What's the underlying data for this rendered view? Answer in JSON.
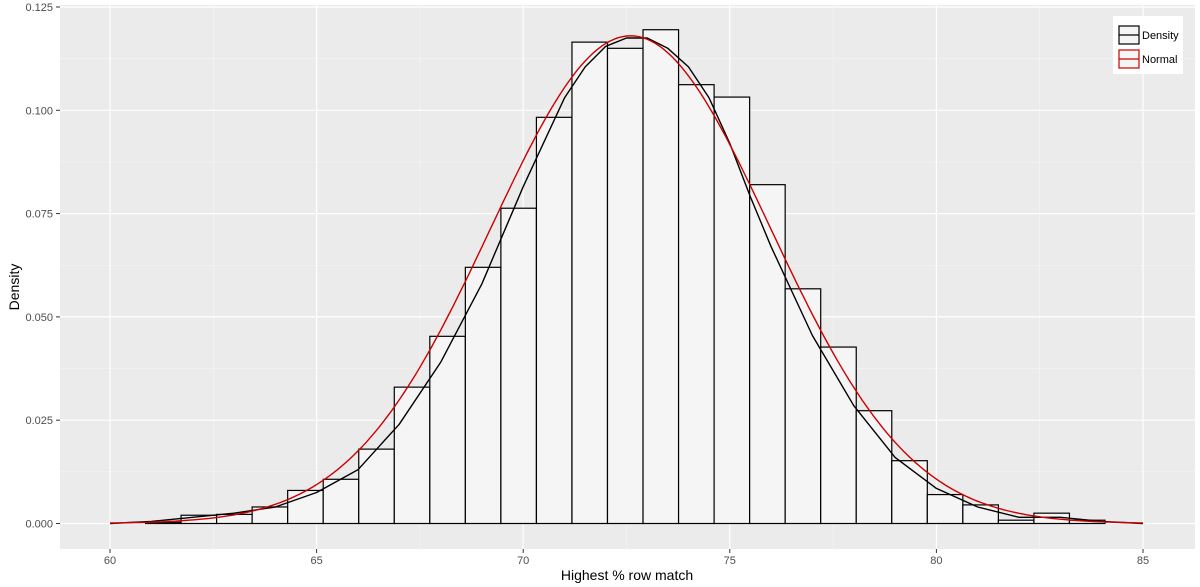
{
  "chart_data": {
    "type": "bar",
    "subtype": "histogram-with-density-curves",
    "title": "",
    "xlabel": "Highest % row match",
    "ylabel": "Density",
    "xlim": [
      60,
      85
    ],
    "ylim": [
      0,
      0.125
    ],
    "xticks": [
      60,
      65,
      70,
      75,
      80,
      85
    ],
    "xtick_labels": [
      "60",
      "65",
      "70",
      "75",
      "80",
      "85"
    ],
    "yticks": [
      0,
      0.025,
      0.05,
      0.075,
      0.1,
      0.125
    ],
    "ytick_labels": [
      "0.000",
      "0.025",
      "0.050",
      "0.075",
      "0.100",
      "0.125"
    ],
    "grid": true,
    "legend_position": "top-right",
    "bins": [
      {
        "x0": 60.0,
        "x1": 60.86,
        "value": 0.0
      },
      {
        "x0": 60.86,
        "x1": 61.72,
        "value": 0.0003
      },
      {
        "x0": 61.72,
        "x1": 62.58,
        "value": 0.002
      },
      {
        "x0": 62.58,
        "x1": 63.44,
        "value": 0.0022
      },
      {
        "x0": 63.44,
        "x1": 64.3,
        "value": 0.004
      },
      {
        "x0": 64.3,
        "x1": 65.16,
        "value": 0.008
      },
      {
        "x0": 65.16,
        "x1": 66.02,
        "value": 0.0107
      },
      {
        "x0": 66.02,
        "x1": 66.88,
        "value": 0.018
      },
      {
        "x0": 66.88,
        "x1": 67.74,
        "value": 0.033
      },
      {
        "x0": 67.74,
        "x1": 68.6,
        "value": 0.0453
      },
      {
        "x0": 68.6,
        "x1": 69.46,
        "value": 0.062
      },
      {
        "x0": 69.46,
        "x1": 70.32,
        "value": 0.0763
      },
      {
        "x0": 70.32,
        "x1": 71.18,
        "value": 0.0983
      },
      {
        "x0": 71.18,
        "x1": 72.04,
        "value": 0.1165
      },
      {
        "x0": 72.04,
        "x1": 72.9,
        "value": 0.115
      },
      {
        "x0": 72.9,
        "x1": 73.76,
        "value": 0.1195
      },
      {
        "x0": 73.76,
        "x1": 74.62,
        "value": 0.1062
      },
      {
        "x0": 74.62,
        "x1": 75.48,
        "value": 0.1032
      },
      {
        "x0": 75.48,
        "x1": 76.34,
        "value": 0.082
      },
      {
        "x0": 76.34,
        "x1": 77.2,
        "value": 0.0568
      },
      {
        "x0": 77.2,
        "x1": 78.06,
        "value": 0.0427
      },
      {
        "x0": 78.06,
        "x1": 78.92,
        "value": 0.0273
      },
      {
        "x0": 78.92,
        "x1": 79.78,
        "value": 0.0152
      },
      {
        "x0": 79.78,
        "x1": 80.64,
        "value": 0.007
      },
      {
        "x0": 80.64,
        "x1": 81.5,
        "value": 0.0045
      },
      {
        "x0": 81.5,
        "x1": 82.36,
        "value": 0.0008
      },
      {
        "x0": 82.36,
        "x1": 83.22,
        "value": 0.0025
      },
      {
        "x0": 83.22,
        "x1": 84.08,
        "value": 0.0008
      }
    ],
    "series": [
      {
        "name": "Density",
        "color": "#000000",
        "x": [
          60.0,
          61.0,
          62.0,
          63.0,
          64.0,
          65.0,
          66.0,
          67.0,
          68.0,
          69.0,
          70.0,
          71.0,
          71.5,
          72.0,
          72.5,
          73.0,
          73.5,
          74.0,
          74.5,
          75.0,
          75.5,
          76.0,
          77.0,
          78.0,
          79.0,
          80.0,
          81.0,
          82.0,
          83.0,
          84.0,
          85.0
        ],
        "y": [
          0.0,
          0.0005,
          0.0015,
          0.0025,
          0.004,
          0.0075,
          0.013,
          0.024,
          0.039,
          0.058,
          0.0815,
          0.103,
          0.1105,
          0.1155,
          0.1175,
          0.1175,
          0.115,
          0.1105,
          0.103,
          0.092,
          0.079,
          0.067,
          0.0455,
          0.0285,
          0.016,
          0.0085,
          0.004,
          0.0015,
          0.0015,
          0.0005,
          0.0
        ]
      },
      {
        "name": "Normal",
        "color": "#cc0000",
        "mean": 72.6,
        "sd": 3.38
      }
    ]
  }
}
